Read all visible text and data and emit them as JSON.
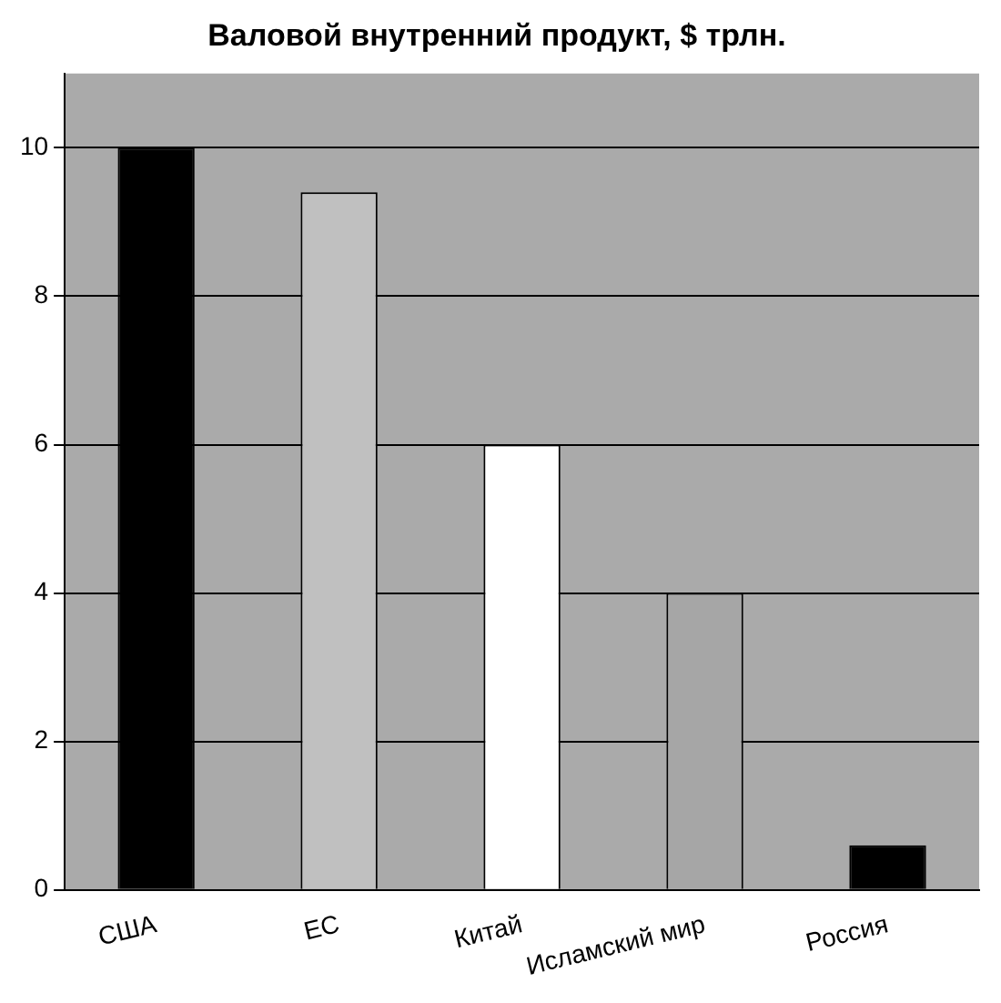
{
  "chart_data": {
    "type": "bar",
    "title": "Валовой внутренний продукт, $ трлн.",
    "categories": [
      "США",
      "ЕС",
      "Китай",
      "Исламский мир",
      "Россия"
    ],
    "values": [
      10,
      9.4,
      6,
      4,
      0.6
    ],
    "colors": [
      "#000000",
      "#c0c0c0",
      "#ffffff",
      "#a6a6a6",
      "#000000"
    ],
    "ylim": [
      0,
      11
    ],
    "yticks": [
      0,
      2,
      4,
      6,
      8,
      10
    ],
    "grid": "y",
    "legend": false
  }
}
